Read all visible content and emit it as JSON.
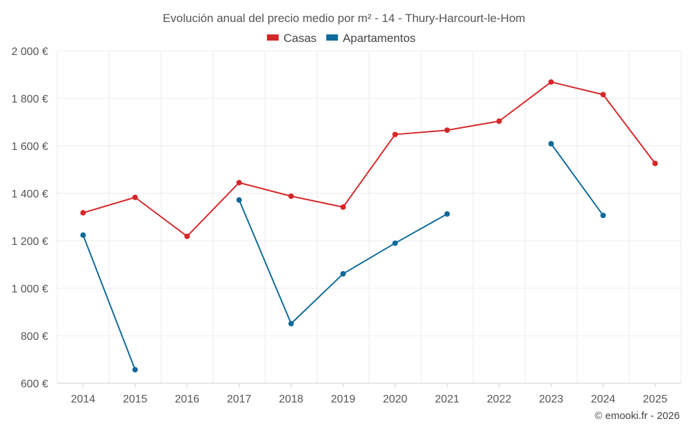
{
  "chart_data": {
    "type": "line",
    "title": "Evolución anual del precio medio por m² - 14 - Thury-Harcourt-le-Hom",
    "categories": [
      "2014",
      "2015",
      "2016",
      "2017",
      "2018",
      "2019",
      "2020",
      "2021",
      "2022",
      "2023",
      "2024",
      "2025"
    ],
    "y_ticks": [
      "600 €",
      "800 €",
      "1 000 €",
      "1 200 €",
      "1 400 €",
      "1 600 €",
      "1 800 €",
      "2 000 €"
    ],
    "y_tick_values": [
      600,
      800,
      1000,
      1200,
      1400,
      1600,
      1800,
      2000
    ],
    "ylim": [
      600,
      2000
    ],
    "grid": true,
    "legend_position": "top-center",
    "series": [
      {
        "name": "Casas",
        "color": "#d62728",
        "values": [
          1318,
          1383,
          1219,
          1445,
          1388,
          1342,
          1648,
          1666,
          1704,
          1869,
          1816,
          1526
        ]
      },
      {
        "name": "Apartamentos",
        "color": "#0d6a9a",
        "values": [
          1224,
          657,
          null,
          1372,
          851,
          1061,
          1190,
          1313,
          null,
          1609,
          1307,
          null
        ]
      }
    ]
  },
  "credit": "© emooki.fr - 2026"
}
